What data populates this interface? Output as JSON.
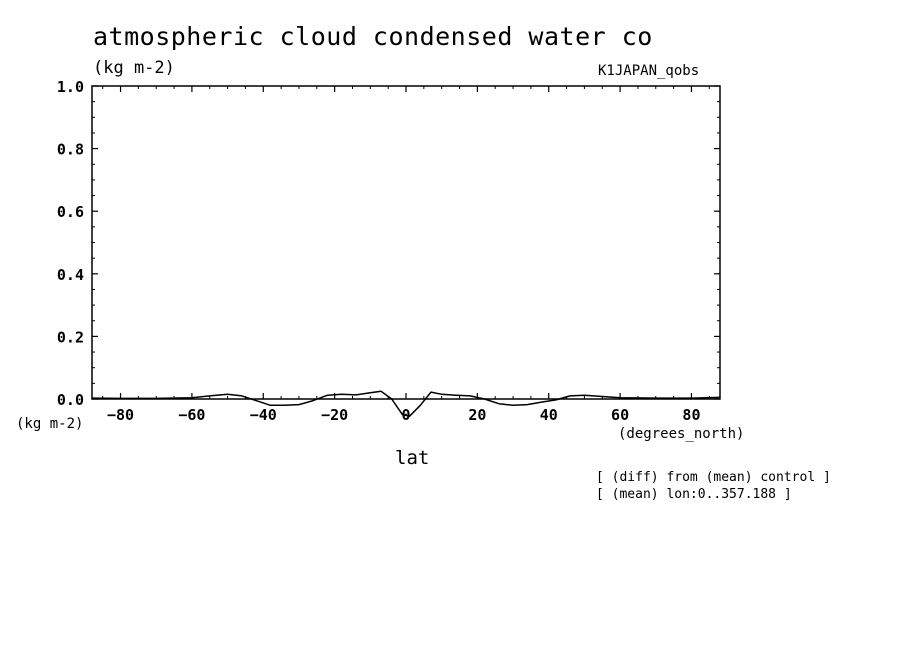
{
  "chart_data": {
    "type": "line",
    "title": "atmospheric cloud condensed water co",
    "units_label": "(kg m-2)",
    "run_label": "K1JAPAN_qobs",
    "ylabel": "(kg m-2)",
    "xunit_label": "(degrees_north)",
    "xlabel": "lat",
    "notes": [
      "[ (diff) from (mean) control ]",
      "[ (mean) lon:0..357.188 ]"
    ],
    "xlim": [
      -88,
      88
    ],
    "ylim": [
      0,
      1
    ],
    "xticks": [
      -80,
      -60,
      -40,
      -20,
      0,
      20,
      40,
      60,
      80
    ],
    "yticks": [
      0,
      0.2,
      0.4,
      0.6,
      0.8,
      1
    ],
    "yticklabels": [
      "0.0",
      "0.2",
      "0.4",
      "0.6",
      "0.8",
      "1.0"
    ],
    "grid": false,
    "series": [
      {
        "x": [
          -88,
          -80,
          -70,
          -60,
          -55,
          -50,
          -46,
          -42,
          -38,
          -34,
          -30,
          -26,
          -22,
          -18,
          -14,
          -10,
          -7,
          -4,
          -1,
          1,
          4,
          7,
          10,
          14,
          18,
          22,
          26,
          30,
          34,
          38,
          42,
          46,
          50,
          55,
          60,
          70,
          80,
          88
        ],
        "y": [
          0.003,
          0.002,
          0.002,
          0.004,
          0.01,
          0.015,
          0.01,
          -0.005,
          -0.02,
          -0.02,
          -0.018,
          -0.005,
          0.012,
          0.015,
          0.013,
          0.02,
          0.025,
          0.0,
          -0.05,
          -0.055,
          -0.02,
          0.022,
          0.015,
          0.012,
          0.01,
          0.0,
          -0.015,
          -0.02,
          -0.018,
          -0.01,
          -0.003,
          0.01,
          0.012,
          0.008,
          0.004,
          0.003,
          0.003,
          0.005
        ]
      }
    ]
  }
}
